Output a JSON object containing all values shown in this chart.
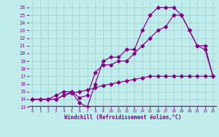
{
  "xlabel": "Windchill (Refroidissement éolien,°C)",
  "bg_color": "#c0ecec",
  "grid_color": "#a0d0d0",
  "line_color": "#880088",
  "axis_bar_color": "#880088",
  "xlim": [
    -0.5,
    23.5
  ],
  "ylim": [
    13,
    26.8
  ],
  "xticks": [
    0,
    1,
    2,
    3,
    4,
    5,
    6,
    7,
    8,
    9,
    10,
    11,
    12,
    13,
    14,
    15,
    16,
    17,
    18,
    19,
    20,
    21,
    22,
    23
  ],
  "yticks": [
    13,
    14,
    15,
    16,
    17,
    18,
    19,
    20,
    21,
    22,
    23,
    24,
    25,
    26
  ],
  "line1_x": [
    0,
    1,
    2,
    3,
    4,
    5,
    6,
    7,
    8,
    9,
    10,
    11,
    12,
    13,
    14,
    15,
    16,
    17,
    18,
    19,
    20,
    21,
    22,
    23
  ],
  "line1_y": [
    14,
    14,
    14,
    14,
    14.5,
    15,
    13.5,
    13,
    16,
    19,
    19.5,
    19.5,
    20.5,
    20.5,
    23,
    25,
    26,
    26,
    26,
    25,
    23,
    21,
    20.5,
    17
  ],
  "line2_x": [
    0,
    1,
    2,
    3,
    4,
    5,
    6,
    7,
    8,
    9,
    10,
    11,
    12,
    13,
    14,
    15,
    16,
    17,
    18,
    19,
    20,
    21,
    22,
    23
  ],
  "line2_y": [
    14,
    14,
    14,
    14.5,
    15,
    15,
    14.2,
    14.5,
    17.5,
    18.5,
    18.5,
    19,
    19,
    20,
    21,
    22,
    23,
    23.5,
    25,
    25,
    23,
    21,
    21,
    17
  ],
  "line3_x": [
    0,
    1,
    2,
    3,
    4,
    5,
    6,
    7,
    8,
    9,
    10,
    11,
    12,
    13,
    14,
    15,
    16,
    17,
    18,
    19,
    20,
    21,
    22,
    23
  ],
  "line3_y": [
    14,
    14,
    14,
    14,
    14.5,
    14.8,
    15,
    15.2,
    15.5,
    15.8,
    16,
    16.2,
    16.4,
    16.6,
    16.8,
    17,
    17,
    17,
    17,
    17,
    17,
    17,
    17,
    17
  ]
}
